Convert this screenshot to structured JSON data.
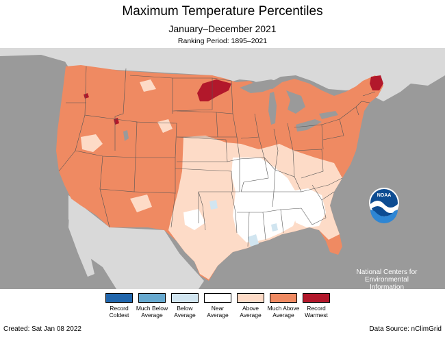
{
  "header": {
    "title": "Maximum Temperature Percentiles",
    "subtitle": "January–December 2021",
    "period": "Ranking Period: 1895–2021"
  },
  "logo": {
    "org_lines": [
      "National Centers for",
      "Environmental",
      "Information"
    ],
    "badge_text": "NOAA"
  },
  "legend": [
    {
      "label": "Record Coldest",
      "color": "#2166ac"
    },
    {
      "label": "Much Below Average",
      "color": "#67a9cf"
    },
    {
      "label": "Below Average",
      "color": "#d1e5f0"
    },
    {
      "label": "Near Average",
      "color": "#ffffff"
    },
    {
      "label": "Above Average",
      "color": "#fddbc7"
    },
    {
      "label": "Much Above Average",
      "color": "#ef8a62"
    },
    {
      "label": "Record Warmest",
      "color": "#b2182b"
    }
  ],
  "footer": {
    "created": "Created: Sat Jan 08 2022",
    "source": "Data Source: nClimGrid"
  },
  "colors": {
    "ocean": "#9a9a9a",
    "neighbor_land": "#d9d9d9",
    "lakes": "#9a9a9a",
    "much_above": "#ef8a62",
    "above": "#fddbc7",
    "near": "#ffffff",
    "below": "#d1e5f0",
    "record_warm": "#b2182b"
  }
}
